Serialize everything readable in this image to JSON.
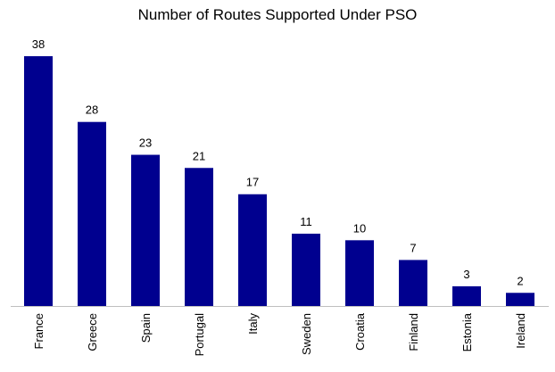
{
  "chart_data": {
    "type": "bar",
    "title": "Number of Routes Supported Under PSO",
    "categories": [
      "France",
      "Greece",
      "Spain",
      "Portugal",
      "Italy",
      "Sweden",
      "Croatia",
      "Finland",
      "Estonia",
      "Ireland"
    ],
    "values": [
      38,
      28,
      23,
      21,
      17,
      11,
      10,
      7,
      3,
      2
    ],
    "color": "#00008f"
  }
}
